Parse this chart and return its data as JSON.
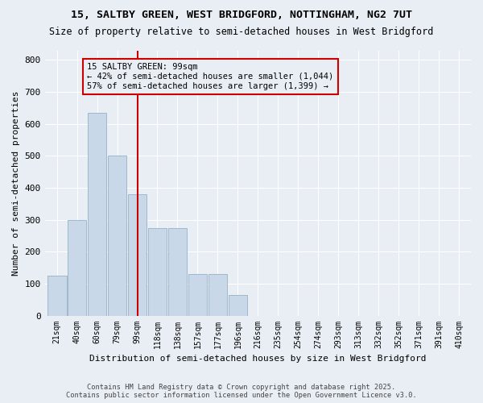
{
  "title1": "15, SALTBY GREEN, WEST BRIDGFORD, NOTTINGHAM, NG2 7UT",
  "title2": "Size of property relative to semi-detached houses in West Bridgford",
  "xlabel": "Distribution of semi-detached houses by size in West Bridgford",
  "ylabel": "Number of semi-detached properties",
  "bin_labels": [
    "21sqm",
    "40sqm",
    "60sqm",
    "79sqm",
    "99sqm",
    "118sqm",
    "138sqm",
    "157sqm",
    "177sqm",
    "196sqm",
    "216sqm",
    "235sqm",
    "254sqm",
    "274sqm",
    "293sqm",
    "313sqm",
    "332sqm",
    "352sqm",
    "371sqm",
    "391sqm",
    "410sqm"
  ],
  "bin_values": [
    125,
    300,
    635,
    500,
    380,
    275,
    275,
    130,
    130,
    65,
    0,
    0,
    0,
    0,
    0,
    0,
    0,
    0,
    0,
    0,
    0
  ],
  "bar_color": "#c8d8e8",
  "bar_edge_color": "#a0b8cc",
  "vline_x": 4,
  "vline_color": "#cc0000",
  "annotation_title": "15 SALTBY GREEN: 99sqm",
  "annotation_line1": "← 42% of semi-detached houses are smaller (1,044)",
  "annotation_line2": "57% of semi-detached houses are larger (1,399) →",
  "annotation_box_color": "#cc0000",
  "ylim": [
    0,
    830
  ],
  "yticks": [
    0,
    100,
    200,
    300,
    400,
    500,
    600,
    700,
    800
  ],
  "background_color": "#e8eef4",
  "footer1": "Contains HM Land Registry data © Crown copyright and database right 2025.",
  "footer2": "Contains public sector information licensed under the Open Government Licence v3.0."
}
